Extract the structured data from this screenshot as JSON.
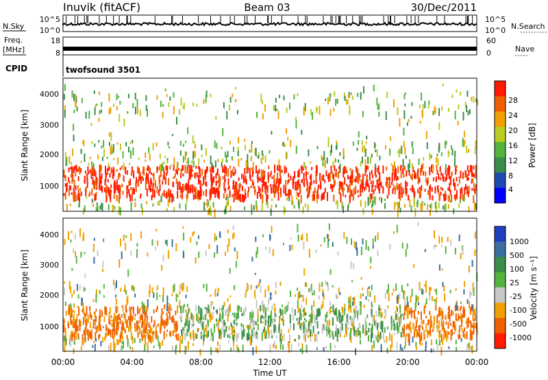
{
  "header": {
    "station": "Inuvik (fitACF)",
    "beam": "Beam 03",
    "date": "30/Dec/2011"
  },
  "aux_panels": {
    "nsky": {
      "label": "N.Sky",
      "ticks": [
        "10^5",
        "10^0"
      ]
    },
    "nsearch": {
      "label": "N.Search",
      "ticks": [
        "10^5",
        "10^0"
      ]
    },
    "freq": {
      "label_line1": "Freq.",
      "label_line2": "[MHz]",
      "ticks": [
        "18",
        "8"
      ]
    },
    "nave": {
      "label": "Nave",
      "ticks": [
        "60",
        "0"
      ]
    },
    "cpid": {
      "label": "CPID",
      "value": "twofsound 3501"
    }
  },
  "chart_data": [
    {
      "type": "heatmap",
      "title": "",
      "ylabel": "Slant Range [km]",
      "xlabel": "",
      "ylim": [
        180,
        4500
      ],
      "y_ticks": [
        "1000",
        "2000",
        "3000",
        "4000"
      ],
      "colorbar": {
        "label": "Power [dB]",
        "range": [
          0,
          32
        ],
        "tick_labels": [
          "4",
          "8",
          "12",
          "16",
          "20",
          "24",
          "28"
        ],
        "colors": [
          "#0000ff",
          "#1f4bb0",
          "#3a8c4a",
          "#52b33d",
          "#b9cc22",
          "#f0a000",
          "#f06000",
          "#ff1a00"
        ]
      },
      "regions": [
        {
          "range_km": [
            700,
            1700
          ],
          "level": "strong",
          "dominant_value_db": 26
        },
        {
          "range_km": [
            1700,
            2500
          ],
          "level": "weak",
          "dominant_value_db": 14
        },
        {
          "range_km": [
            3400,
            4100
          ],
          "level": "sparse",
          "dominant_value_db": 18
        }
      ]
    },
    {
      "type": "heatmap",
      "title": "",
      "ylabel": "Slant Range [km]",
      "xlabel": "Time UT",
      "ylim": [
        180,
        4500
      ],
      "y_ticks": [
        "1000",
        "2000",
        "3000",
        "4000"
      ],
      "x_ticks": [
        "00:00",
        "04:00",
        "08:00",
        "12:00",
        "16:00",
        "20:00",
        "00:00"
      ],
      "colorbar": {
        "label": "Velocity [m s⁻¹]",
        "tick_labels": [
          "1000",
          "500",
          "100",
          "25",
          "-25",
          "-100",
          "-500",
          "-1000"
        ],
        "colors": [
          "#1f3fbf",
          "#3a6fa0",
          "#3a8c4a",
          "#52b33d",
          "#c8c8c8",
          "#f0a000",
          "#f06000",
          "#ff1a00"
        ]
      },
      "regions": [
        {
          "range_km": [
            700,
            1700
          ],
          "level": "strong",
          "dominant_value_ms": -150
        },
        {
          "range_km": [
            300,
            1400
          ],
          "time_window": "08:00-20:00",
          "level": "mixed",
          "dominant_value_ms": 200
        },
        {
          "range_km": [
            3400,
            4100
          ],
          "level": "sparse",
          "dominant_value_ms": -100
        }
      ]
    }
  ]
}
